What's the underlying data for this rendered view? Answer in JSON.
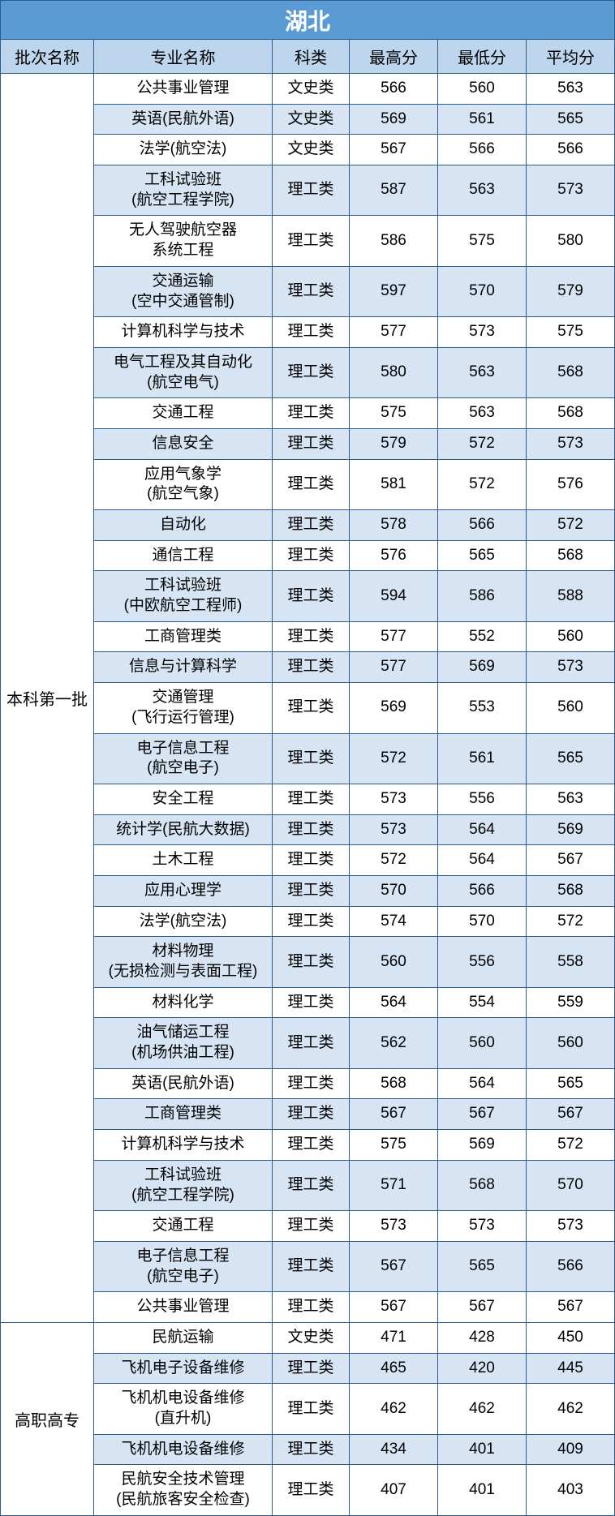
{
  "title": "湖北",
  "headers": {
    "batch": "批次名称",
    "major": "专业名称",
    "category": "科类",
    "max": "最高分",
    "min": "最低分",
    "avg": "平均分"
  },
  "colors": {
    "title_bg": "#5b9bd5",
    "title_fg": "#ffffff",
    "header_bg": "#bdd6ee",
    "row_even_bg": "#ffffff",
    "row_odd_bg": "#d6e4f4",
    "border": "#2e5c8a",
    "text": "#000000"
  },
  "batches": [
    {
      "name": "本科第一批",
      "rows": [
        {
          "major": "公共事业管理",
          "category": "文史类",
          "max": "566",
          "min": "560",
          "avg": "563"
        },
        {
          "major": "英语(民航外语)",
          "category": "文史类",
          "max": "569",
          "min": "561",
          "avg": "565"
        },
        {
          "major": "法学(航空法)",
          "category": "文史类",
          "max": "567",
          "min": "566",
          "avg": "566"
        },
        {
          "major": "工科试验班\n(航空工程学院)",
          "category": "理工类",
          "max": "587",
          "min": "563",
          "avg": "573"
        },
        {
          "major": "无人驾驶航空器\n系统工程",
          "category": "理工类",
          "max": "586",
          "min": "575",
          "avg": "580"
        },
        {
          "major": "交通运输\n(空中交通管制)",
          "category": "理工类",
          "max": "597",
          "min": "570",
          "avg": "579"
        },
        {
          "major": "计算机科学与技术",
          "category": "理工类",
          "max": "577",
          "min": "573",
          "avg": "575"
        },
        {
          "major": "电气工程及其自动化\n(航空电气)",
          "category": "理工类",
          "max": "580",
          "min": "563",
          "avg": "568"
        },
        {
          "major": "交通工程",
          "category": "理工类",
          "max": "575",
          "min": "563",
          "avg": "568"
        },
        {
          "major": "信息安全",
          "category": "理工类",
          "max": "579",
          "min": "572",
          "avg": "573"
        },
        {
          "major": "应用气象学\n(航空气象)",
          "category": "理工类",
          "max": "581",
          "min": "572",
          "avg": "576"
        },
        {
          "major": "自动化",
          "category": "理工类",
          "max": "578",
          "min": "566",
          "avg": "572"
        },
        {
          "major": "通信工程",
          "category": "理工类",
          "max": "576",
          "min": "565",
          "avg": "568"
        },
        {
          "major": "工科试验班\n(中欧航空工程师)",
          "category": "理工类",
          "max": "594",
          "min": "586",
          "avg": "588"
        },
        {
          "major": "工商管理类",
          "category": "理工类",
          "max": "577",
          "min": "552",
          "avg": "560"
        },
        {
          "major": "信息与计算科学",
          "category": "理工类",
          "max": "577",
          "min": "569",
          "avg": "573"
        },
        {
          "major": "交通管理\n(飞行运行管理)",
          "category": "理工类",
          "max": "569",
          "min": "553",
          "avg": "560"
        },
        {
          "major": "电子信息工程\n(航空电子)",
          "category": "理工类",
          "max": "572",
          "min": "561",
          "avg": "565"
        },
        {
          "major": "安全工程",
          "category": "理工类",
          "max": "573",
          "min": "556",
          "avg": "563"
        },
        {
          "major": "统计学(民航大数据)",
          "category": "理工类",
          "max": "573",
          "min": "564",
          "avg": "569"
        },
        {
          "major": "土木工程",
          "category": "理工类",
          "max": "572",
          "min": "564",
          "avg": "567"
        },
        {
          "major": "应用心理学",
          "category": "理工类",
          "max": "570",
          "min": "566",
          "avg": "568"
        },
        {
          "major": "法学(航空法)",
          "category": "理工类",
          "max": "574",
          "min": "570",
          "avg": "572"
        },
        {
          "major": "材料物理\n(无损检测与表面工程)",
          "category": "理工类",
          "max": "560",
          "min": "556",
          "avg": "558"
        },
        {
          "major": "材料化学",
          "category": "理工类",
          "max": "564",
          "min": "554",
          "avg": "559"
        },
        {
          "major": "油气储运工程\n(机场供油工程)",
          "category": "理工类",
          "max": "562",
          "min": "560",
          "avg": "560"
        },
        {
          "major": "英语(民航外语)",
          "category": "理工类",
          "max": "568",
          "min": "564",
          "avg": "565"
        },
        {
          "major": "工商管理类",
          "category": "理工类",
          "max": "567",
          "min": "567",
          "avg": "567"
        },
        {
          "major": "计算机科学与技术",
          "category": "理工类",
          "max": "575",
          "min": "569",
          "avg": "572"
        },
        {
          "major": "工科试验班\n(航空工程学院)",
          "category": "理工类",
          "max": "571",
          "min": "568",
          "avg": "570"
        },
        {
          "major": "交通工程",
          "category": "理工类",
          "max": "573",
          "min": "573",
          "avg": "573"
        },
        {
          "major": "电子信息工程\n(航空电子)",
          "category": "理工类",
          "max": "567",
          "min": "565",
          "avg": "566"
        },
        {
          "major": "公共事业管理",
          "category": "理工类",
          "max": "567",
          "min": "567",
          "avg": "567"
        }
      ]
    },
    {
      "name": "高职高专",
      "rows": [
        {
          "major": "民航运输",
          "category": "文史类",
          "max": "471",
          "min": "428",
          "avg": "450"
        },
        {
          "major": "飞机电子设备维修",
          "category": "理工类",
          "max": "465",
          "min": "420",
          "avg": "445"
        },
        {
          "major": "飞机机电设备维修\n(直升机)",
          "category": "理工类",
          "max": "462",
          "min": "462",
          "avg": "462"
        },
        {
          "major": "飞机机电设备维修",
          "category": "理工类",
          "max": "434",
          "min": "401",
          "avg": "409"
        },
        {
          "major": "民航安全技术管理\n(民航旅客安全检查)",
          "category": "理工类",
          "max": "407",
          "min": "401",
          "avg": "403"
        }
      ]
    }
  ]
}
